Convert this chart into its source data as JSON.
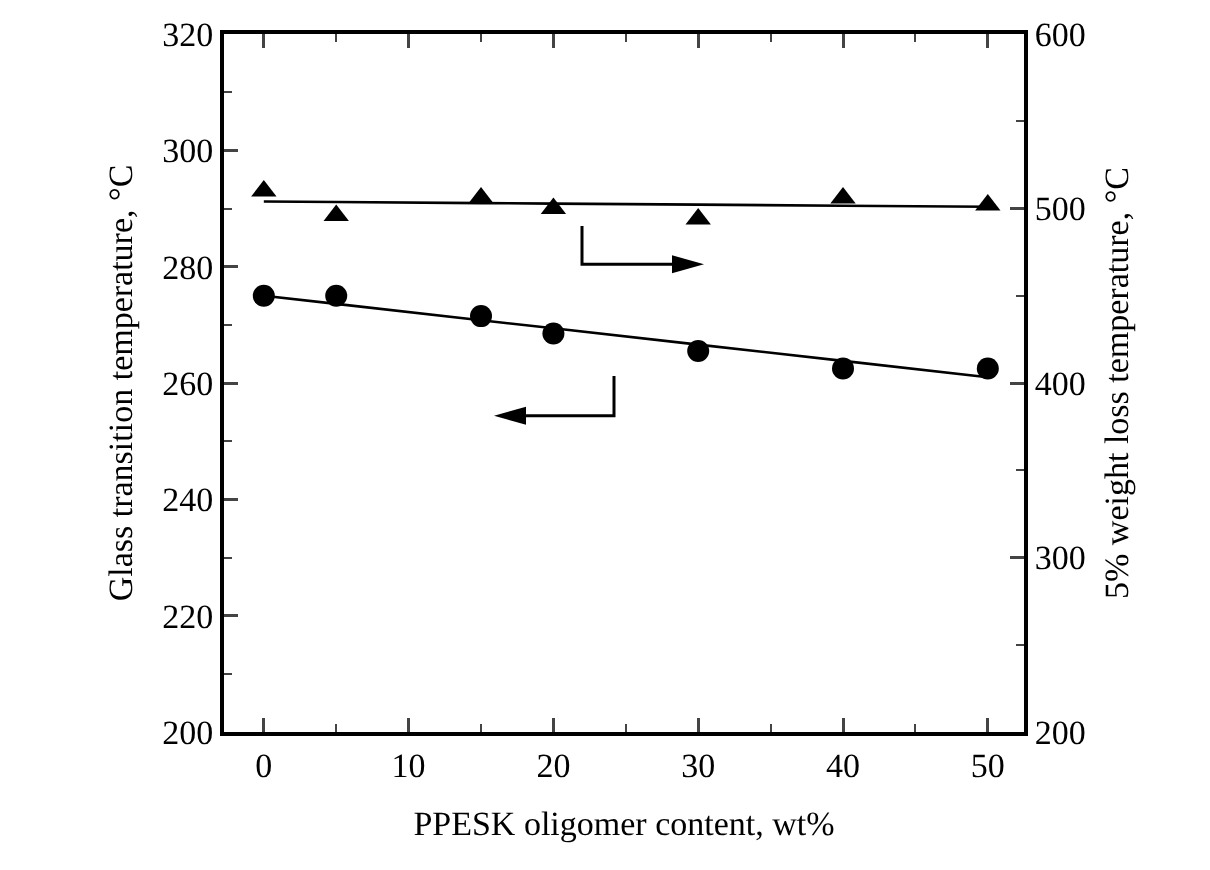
{
  "chart_data": {
    "type": "scatter",
    "xlabel": "PPESK oligomer content, wt%",
    "ylabel": "Glass transition temperature, °C",
    "y2label": "5% weight loss temperature, °C",
    "x": [
      0,
      5,
      15,
      20,
      30,
      40,
      50
    ],
    "series": [
      {
        "color": "#000000",
        "marker": "circle",
        "values": [
          275,
          275,
          271.5,
          268.5,
          265.5,
          262.5,
          262.5
        ]
      },
      {
        "type": "line",
        "color": "#000000",
        "marker": "none",
        "values": [
          275,
          273.6,
          270.8,
          269.4,
          266.6,
          263.8,
          261
        ]
      },
      {
        "color": "#000000",
        "marker": "triangle",
        "axis": "y2",
        "values": [
          510,
          496,
          506,
          500,
          494,
          506,
          502
        ]
      },
      {
        "type": "line",
        "color": "#000000",
        "marker": "none",
        "axis": "y2",
        "values": [
          504,
          503.7,
          503.1,
          502.8,
          502.2,
          501.6,
          501
        ]
      }
    ],
    "xlim": [
      -2.75,
      52.5
    ],
    "xticks": [
      0,
      10,
      20,
      30,
      40,
      50
    ],
    "ylim": [
      200,
      320
    ],
    "yticks": [
      200,
      220,
      240,
      260,
      280,
      300,
      320
    ],
    "y2lim": [
      200,
      600
    ],
    "y2ticks": [
      200,
      300,
      400,
      500,
      600
    ],
    "grid": false,
    "line_style": "solid"
  }
}
